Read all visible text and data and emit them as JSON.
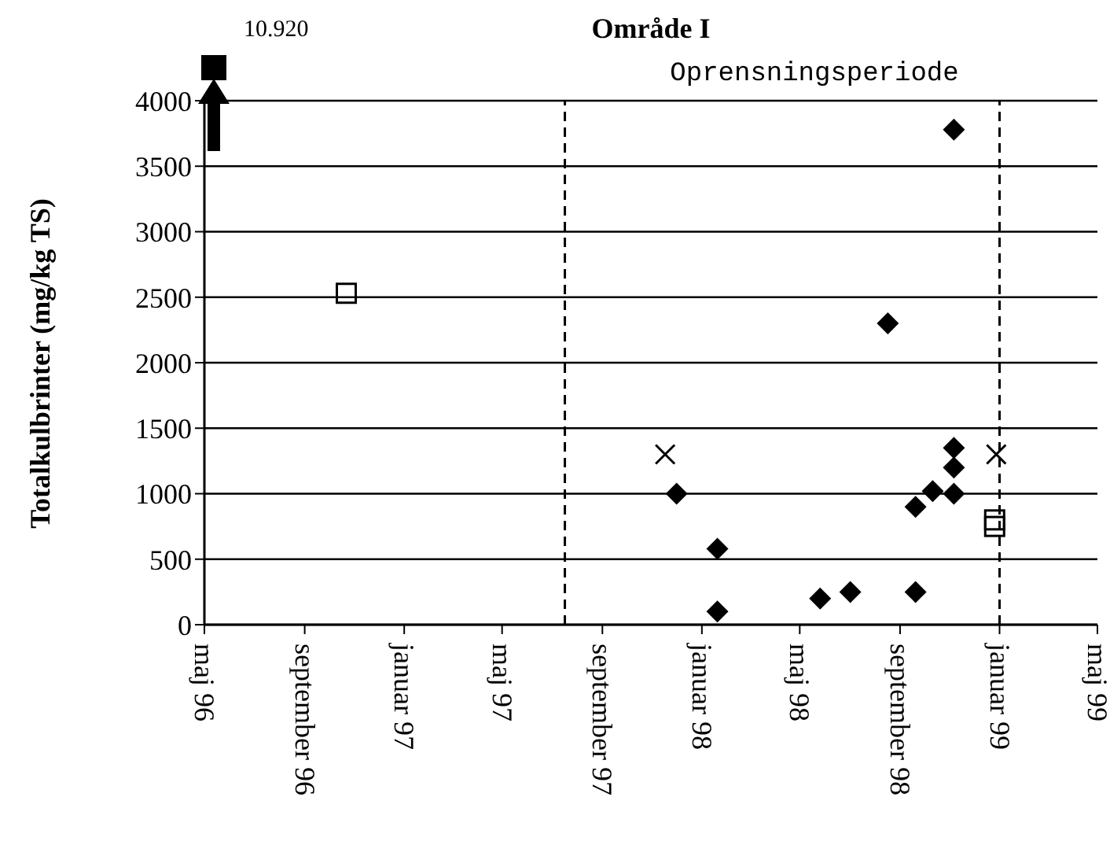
{
  "chart_data": {
    "type": "scatter",
    "title": "Område I",
    "ylabel": "Totalkulbrinter (mg/kg TS)",
    "annotations": [
      "10.920",
      "Oprensningsperiode"
    ],
    "xlim": [
      "1996-05-01",
      "1999-05-01"
    ],
    "xticks": [
      {
        "value": "1996-05-01",
        "label": "maj 96"
      },
      {
        "value": "1996-09-01",
        "label": "september 96"
      },
      {
        "value": "1997-01-01",
        "label": "januar 97"
      },
      {
        "value": "1997-05-01",
        "label": "maj 97"
      },
      {
        "value": "1997-09-01",
        "label": "september 97"
      },
      {
        "value": "1998-01-01",
        "label": "januar 98"
      },
      {
        "value": "1998-05-01",
        "label": "maj 98"
      },
      {
        "value": "1998-09-01",
        "label": "september 98"
      },
      {
        "value": "1999-01-01",
        "label": "januar 99"
      },
      {
        "value": "1999-05-01",
        "label": "maj 99"
      }
    ],
    "ylim": [
      0,
      4000
    ],
    "yticks": [
      0,
      500,
      1000,
      1500,
      2000,
      2500,
      3000,
      3500,
      4000
    ],
    "grid": "y",
    "legend": false,
    "ref_lines": [
      {
        "axis": "x",
        "value": "1997-07-17",
        "line_style": "dashed",
        "color": "#000000"
      },
      {
        "axis": "x",
        "value": "1999-01-01",
        "line_style": "dashed",
        "color": "#000000"
      }
    ],
    "series": [
      {
        "color": "#000000",
        "marker": "diamond",
        "x": [
          "1997-12-01",
          "1998-01-20",
          "1998-01-20",
          "1998-05-26",
          "1998-07-02",
          "1998-08-17",
          "1998-09-20",
          "1998-09-20",
          "1998-10-11",
          "1998-11-06",
          "1998-11-06",
          "1998-11-06",
          "1998-11-06"
        ],
        "values": [
          1000,
          580,
          100,
          200,
          250,
          2300,
          250,
          900,
          1020,
          1350,
          1200,
          1000,
          3780
        ]
      },
      {
        "color": "#000000",
        "marker": "square",
        "x": [
          "1996-10-22",
          "1998-12-26",
          "1998-12-26"
        ],
        "values": [
          2530,
          800,
          750
        ]
      },
      {
        "color": "#000000",
        "marker": "cross",
        "x": [
          "1997-11-17",
          "1998-12-28"
        ],
        "values": [
          1300,
          1300
        ]
      }
    ]
  }
}
